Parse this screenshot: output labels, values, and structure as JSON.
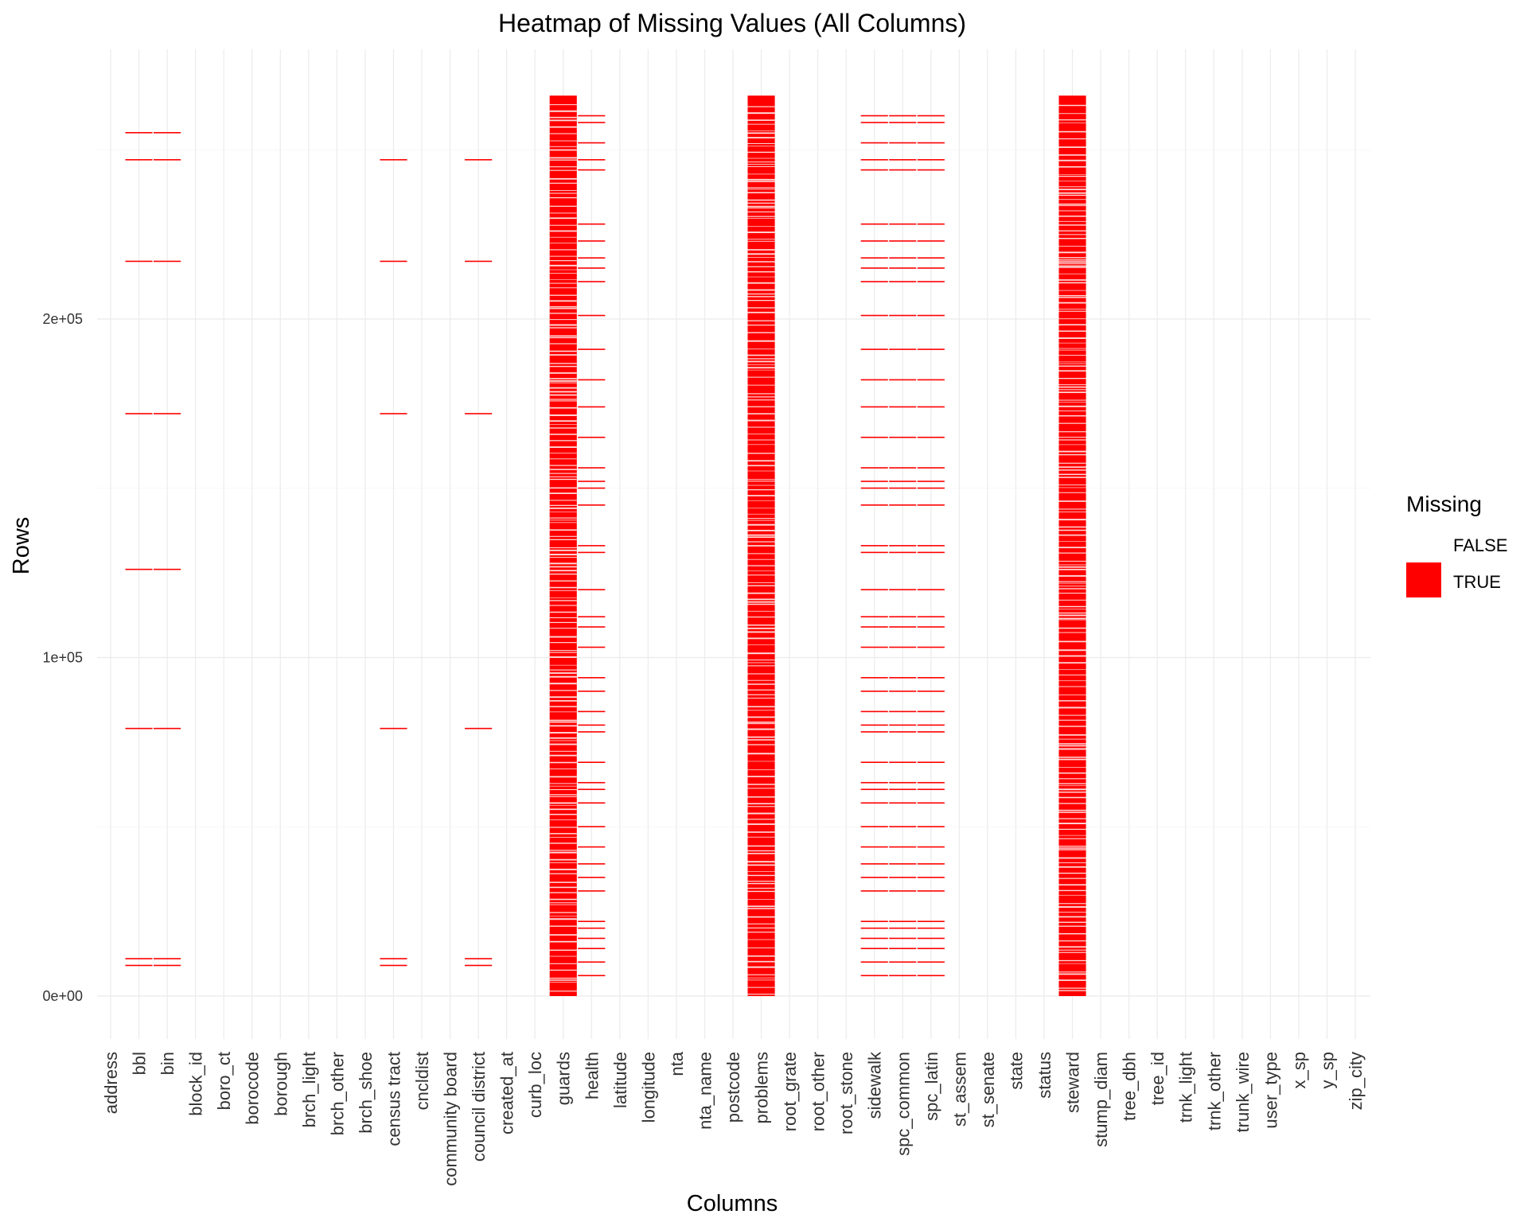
{
  "chart_data": {
    "type": "heatmap",
    "title": "Heatmap of Missing Values (All Columns)",
    "xlabel": "Columns",
    "ylabel": "Rows",
    "ylim": [
      0,
      265000
    ],
    "y_ticks": [
      {
        "value": 0,
        "label": "0e+00"
      },
      {
        "value": 100000,
        "label": "1e+05"
      },
      {
        "value": 200000,
        "label": "2e+05"
      }
    ],
    "columns": [
      "address",
      "bbl",
      "bin",
      "block_id",
      "boro_ct",
      "borocode",
      "borough",
      "brch_light",
      "brch_other",
      "brch_shoe",
      "census tract",
      "cncldist",
      "community board",
      "council district",
      "created_at",
      "curb_loc",
      "guards",
      "health",
      "latitude",
      "longitude",
      "nta",
      "nta_name",
      "postcode",
      "problems",
      "root_grate",
      "root_other",
      "root_stone",
      "sidewalk",
      "spc_common",
      "spc_latin",
      "st_assem",
      "st_senate",
      "state",
      "status",
      "steward",
      "stump_diam",
      "tree_dbh",
      "tree_id",
      "trnk_light",
      "trnk_other",
      "trunk_wire",
      "user_type",
      "x_sp",
      "y_sp",
      "zip_city"
    ],
    "legend": {
      "title": "Missing",
      "entries": [
        {
          "label": "FALSE",
          "color": "#ffffff"
        },
        {
          "label": "TRUE",
          "color": "#ff0000"
        }
      ]
    },
    "missing_color": "#ff0000",
    "sparse_missing_rows": {
      "bbl": [
        9000,
        11000,
        79000,
        126000,
        172000,
        217000,
        247000,
        255000
      ],
      "bin": [
        9000,
        11000,
        79000,
        126000,
        172000,
        217000,
        247000,
        255000
      ],
      "census tract": [
        9000,
        11000,
        79000,
        172000,
        217000,
        247000
      ],
      "council district": [
        9000,
        11000,
        79000,
        172000,
        217000,
        247000
      ],
      "health": [
        6000,
        10000,
        14000,
        17000,
        20000,
        22000,
        31000,
        35000,
        39000,
        44000,
        50000,
        57000,
        61000,
        63000,
        69000,
        78000,
        80000,
        84000,
        90000,
        94000,
        103000,
        109000,
        112000,
        120000,
        131000,
        133000,
        145000,
        150000,
        152000,
        156000,
        165000,
        174000,
        182000,
        191000,
        201000,
        211000,
        215000,
        218000,
        223000,
        228000,
        244000,
        247000,
        252000,
        258000,
        260000
      ],
      "sidewalk": [
        6000,
        10000,
        14000,
        17000,
        20000,
        22000,
        31000,
        35000,
        39000,
        44000,
        50000,
        57000,
        61000,
        63000,
        69000,
        78000,
        80000,
        84000,
        90000,
        94000,
        103000,
        109000,
        112000,
        120000,
        131000,
        133000,
        145000,
        150000,
        152000,
        156000,
        165000,
        174000,
        182000,
        191000,
        201000,
        211000,
        215000,
        218000,
        223000,
        228000,
        244000,
        247000,
        252000,
        258000,
        260000
      ],
      "spc_common": [
        6000,
        10000,
        14000,
        17000,
        20000,
        22000,
        31000,
        35000,
        39000,
        44000,
        50000,
        57000,
        61000,
        63000,
        69000,
        78000,
        80000,
        84000,
        90000,
        94000,
        103000,
        109000,
        112000,
        120000,
        131000,
        133000,
        145000,
        150000,
        152000,
        156000,
        165000,
        174000,
        182000,
        191000,
        201000,
        211000,
        215000,
        218000,
        223000,
        228000,
        244000,
        247000,
        252000,
        258000,
        260000
      ],
      "spc_latin": [
        6000,
        10000,
        14000,
        17000,
        20000,
        22000,
        31000,
        35000,
        39000,
        44000,
        50000,
        57000,
        61000,
        63000,
        69000,
        78000,
        80000,
        84000,
        90000,
        94000,
        103000,
        109000,
        112000,
        120000,
        131000,
        133000,
        145000,
        150000,
        152000,
        156000,
        165000,
        174000,
        182000,
        191000,
        201000,
        211000,
        215000,
        218000,
        223000,
        228000,
        244000,
        247000,
        252000,
        258000,
        260000
      ]
    },
    "dense_missing_columns": [
      "guards",
      "problems",
      "steward"
    ],
    "dense_missing_row_range": [
      0,
      266000
    ]
  }
}
